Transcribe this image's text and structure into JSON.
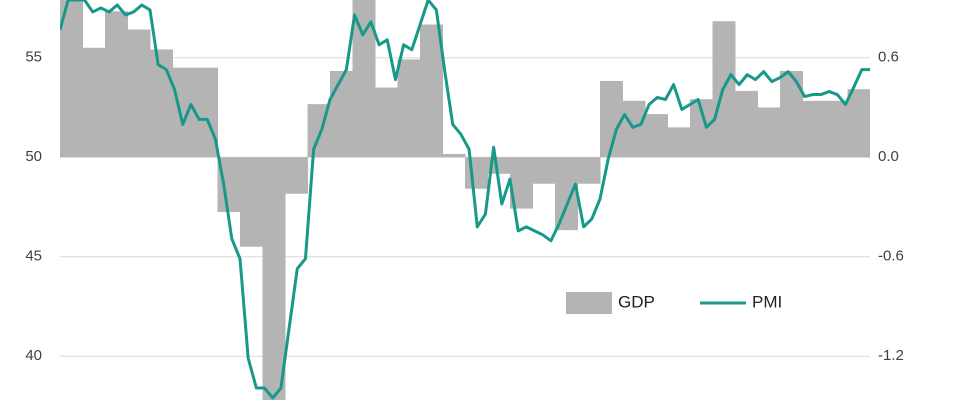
{
  "chart_data": [
    {
      "type": "bar",
      "categories": [
        null,
        null,
        null,
        null,
        null,
        null,
        null,
        null,
        null,
        null,
        null,
        null,
        null,
        null,
        null,
        null,
        null,
        null,
        null,
        null,
        null,
        null,
        null,
        null,
        null,
        null,
        null,
        null,
        null,
        null,
        null,
        null,
        null,
        null,
        null,
        null
      ],
      "series": [
        {
          "name": "GDP",
          "color": "#b4b4b4",
          "axis": "y2",
          "values": [
            0.95,
            0.66,
            0.88,
            0.77,
            0.65,
            0.54,
            0.54,
            -0.33,
            -0.54,
            -1.5,
            -0.22,
            0.32,
            0.52,
            0.95,
            0.42,
            0.59,
            0.8,
            0.02,
            -0.19,
            -0.1,
            -0.31,
            -0.16,
            -0.44,
            -0.16,
            0.46,
            0.34,
            0.26,
            0.18,
            0.35,
            0.82,
            0.4,
            0.3,
            0.52,
            0.34,
            0.34,
            0.41
          ]
        }
      ],
      "y2lim": [
        -1.464,
        0.948
      ],
      "y2ticks": [
        -1.2,
        -0.6,
        {
          "value": 0,
          "label": "0.0"
        },
        0.6
      ],
      "legend": "lower right"
    },
    {
      "type": "line",
      "categories": [
        null,
        null,
        null,
        null,
        null,
        null,
        null,
        null,
        null,
        null,
        null,
        null,
        null,
        null,
        null,
        null,
        null,
        null,
        null,
        null,
        null,
        null,
        null,
        null,
        null,
        null,
        null,
        null,
        null,
        null,
        null,
        null,
        null,
        null,
        null,
        null,
        null,
        null,
        null,
        null,
        null,
        null,
        null,
        null,
        null,
        null,
        null,
        null,
        null,
        null,
        null,
        null,
        null,
        null,
        null,
        null,
        null,
        null,
        null,
        null,
        null,
        null,
        null,
        null,
        null,
        null,
        null,
        null,
        null,
        null,
        null,
        null,
        null,
        null,
        null,
        null,
        null,
        null,
        null,
        null,
        null,
        null,
        null,
        null,
        null,
        null,
        null,
        null,
        null,
        null,
        null,
        null,
        null,
        null,
        null,
        null,
        null,
        null,
        null,
        null
      ],
      "series": [
        {
          "name": "PMI",
          "color": "#17998a",
          "values": [
            56.4,
            57.9,
            57.9,
            57.9,
            57.3,
            57.5,
            57.3,
            57.65,
            57.15,
            57.3,
            57.65,
            57.4,
            54.65,
            54.4,
            53.4,
            51.65,
            52.65,
            51.9,
            51.9,
            50.9,
            48.65,
            45.9,
            44.9,
            39.9,
            38.4,
            38.4,
            37.9,
            38.4,
            41.4,
            44.4,
            44.9,
            50.4,
            51.4,
            52.9,
            53.65,
            54.4,
            57.15,
            56.15,
            56.8,
            55.65,
            55.9,
            53.9,
            55.65,
            55.4,
            56.65,
            57.9,
            57.4,
            54.4,
            51.65,
            51.15,
            50.4,
            46.5,
            47.15,
            50.5,
            47.65,
            48.9,
            46.3,
            46.5,
            46.3,
            46.1,
            45.8,
            46.65,
            47.65,
            48.65,
            46.5,
            46.9,
            47.9,
            49.9,
            51.4,
            52.15,
            51.5,
            51.65,
            52.65,
            53.0,
            52.9,
            53.65,
            52.4,
            52.65,
            52.9,
            51.5,
            51.9,
            53.4,
            54.15,
            53.65,
            54.15,
            53.9,
            54.3,
            53.8,
            54.0,
            54.3,
            53.8,
            53.05,
            53.15,
            53.15,
            53.3,
            53.15,
            52.65,
            53.5,
            54.4,
            54.4
          ]
        }
      ],
      "ylim": [
        37.8,
        57.9
      ],
      "yticks": [
        40,
        45,
        50,
        55
      ],
      "grid": true
    }
  ]
}
